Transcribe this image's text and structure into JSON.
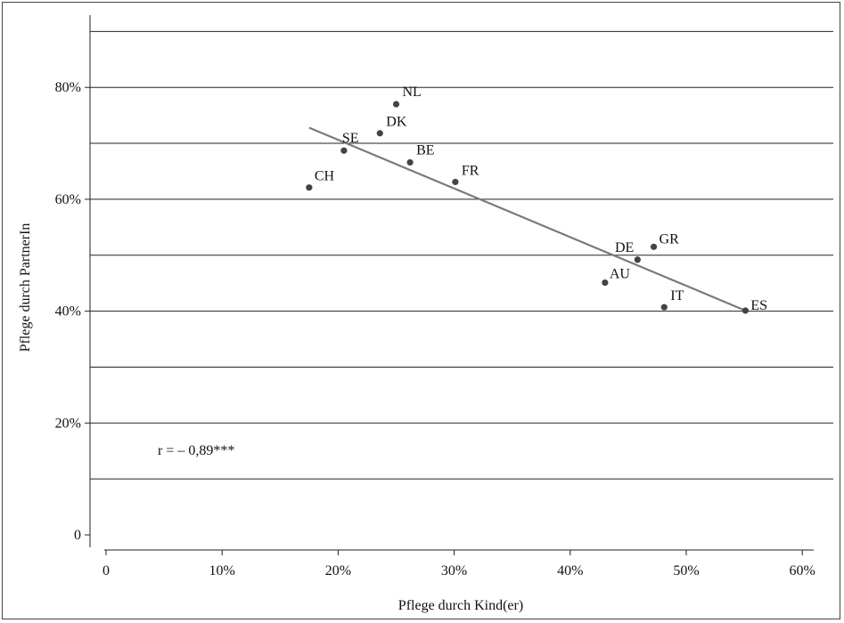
{
  "chart_data": {
    "type": "scatter",
    "xlabel": "Pflege durch Kind(er)",
    "ylabel": "Pflege durch PartnerIn",
    "xlim": [
      0,
      60
    ],
    "ylim": [
      0,
      90
    ],
    "x_ticks": [
      0,
      10,
      20,
      30,
      40,
      50,
      60
    ],
    "x_tick_labels": [
      "0",
      "10%",
      "20%",
      "30%",
      "40%",
      "50%",
      "60%"
    ],
    "y_ticks": [
      0,
      20,
      40,
      60,
      80
    ],
    "y_tick_labels": [
      "0",
      "20%",
      "40%",
      "60%",
      "80%"
    ],
    "gridlines_y": [
      10,
      20,
      30,
      40,
      50,
      60,
      70,
      80,
      90
    ],
    "grid": "horizontal",
    "points": [
      {
        "label": "NL",
        "x": 25.0,
        "y": 77.0
      },
      {
        "label": "DK",
        "x": 23.6,
        "y": 71.8
      },
      {
        "label": "SE",
        "x": 20.5,
        "y": 68.7
      },
      {
        "label": "BE",
        "x": 26.2,
        "y": 66.6
      },
      {
        "label": "FR",
        "x": 30.1,
        "y": 63.1
      },
      {
        "label": "CH",
        "x": 17.5,
        "y": 62.1
      },
      {
        "label": "GR",
        "x": 47.2,
        "y": 51.5
      },
      {
        "label": "DE",
        "x": 45.8,
        "y": 49.2
      },
      {
        "label": "AU",
        "x": 43.0,
        "y": 45.1
      },
      {
        "label": "IT",
        "x": 48.1,
        "y": 40.7
      },
      {
        "label": "ES",
        "x": 55.1,
        "y": 40.1
      }
    ],
    "trendline": {
      "x": [
        17.5,
        55.1
      ],
      "y": [
        72.8,
        40.1
      ]
    },
    "annotation": "r = – 0,89***",
    "colors": {
      "point": "#444444",
      "trendline": "#7a7a7a",
      "grid": "#222222"
    }
  }
}
